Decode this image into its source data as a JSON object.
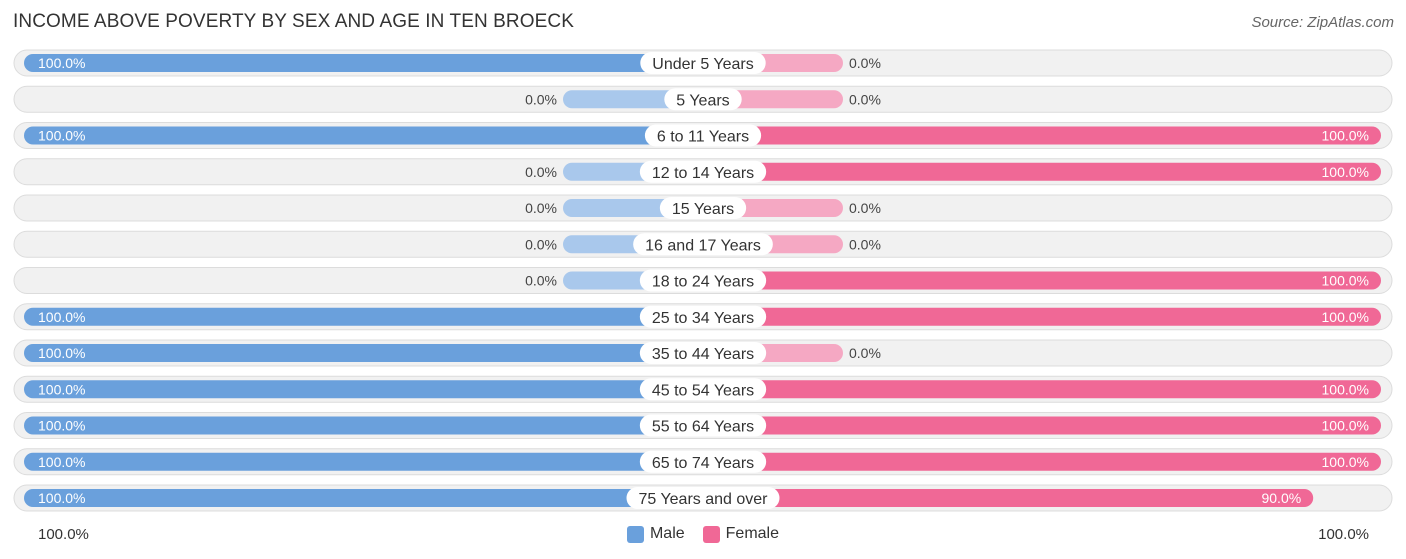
{
  "title": "INCOME ABOVE POVERTY BY SEX AND AGE IN TEN BROECK",
  "source": "Source: ZipAtlas.com",
  "colors": {
    "male": "#6aa0dc",
    "male_light": "#a9c8ec",
    "female": "#f06896",
    "female_light": "#f5a8c3",
    "track": "#f1f1f1",
    "track_border": "#dcdcdc"
  },
  "chart_data": {
    "type": "bar",
    "orientation": "diverging-horizontal",
    "title": "INCOME ABOVE POVERTY BY SEX AND AGE IN TEN BROECK",
    "categories": [
      "Under 5 Years",
      "5 Years",
      "6 to 11 Years",
      "12 to 14 Years",
      "15 Years",
      "16 and 17 Years",
      "18 to 24 Years",
      "25 to 34 Years",
      "35 to 44 Years",
      "45 to 54 Years",
      "55 to 64 Years",
      "65 to 74 Years",
      "75 Years and over"
    ],
    "series": [
      {
        "name": "Male",
        "values": [
          100.0,
          0.0,
          100.0,
          0.0,
          0.0,
          0.0,
          0.0,
          100.0,
          100.0,
          100.0,
          100.0,
          100.0,
          100.0
        ],
        "labels": [
          "100.0%",
          "0.0%",
          "100.0%",
          "0.0%",
          "0.0%",
          "0.0%",
          "0.0%",
          "100.0%",
          "100.0%",
          "100.0%",
          "100.0%",
          "100.0%",
          "100.0%"
        ]
      },
      {
        "name": "Female",
        "values": [
          0.0,
          0.0,
          100.0,
          100.0,
          0.0,
          0.0,
          100.0,
          100.0,
          0.0,
          100.0,
          100.0,
          100.0,
          90.0
        ],
        "labels": [
          "0.0%",
          "0.0%",
          "100.0%",
          "100.0%",
          "0.0%",
          "0.0%",
          "100.0%",
          "100.0%",
          "0.0%",
          "100.0%",
          "100.0%",
          "100.0%",
          "90.0%"
        ]
      }
    ],
    "xlim": [
      -100,
      100
    ],
    "axis_labels": {
      "left": "100.0%",
      "right": "100.0%"
    },
    "legend": [
      "Male",
      "Female"
    ],
    "legend_position": "bottom-center"
  }
}
